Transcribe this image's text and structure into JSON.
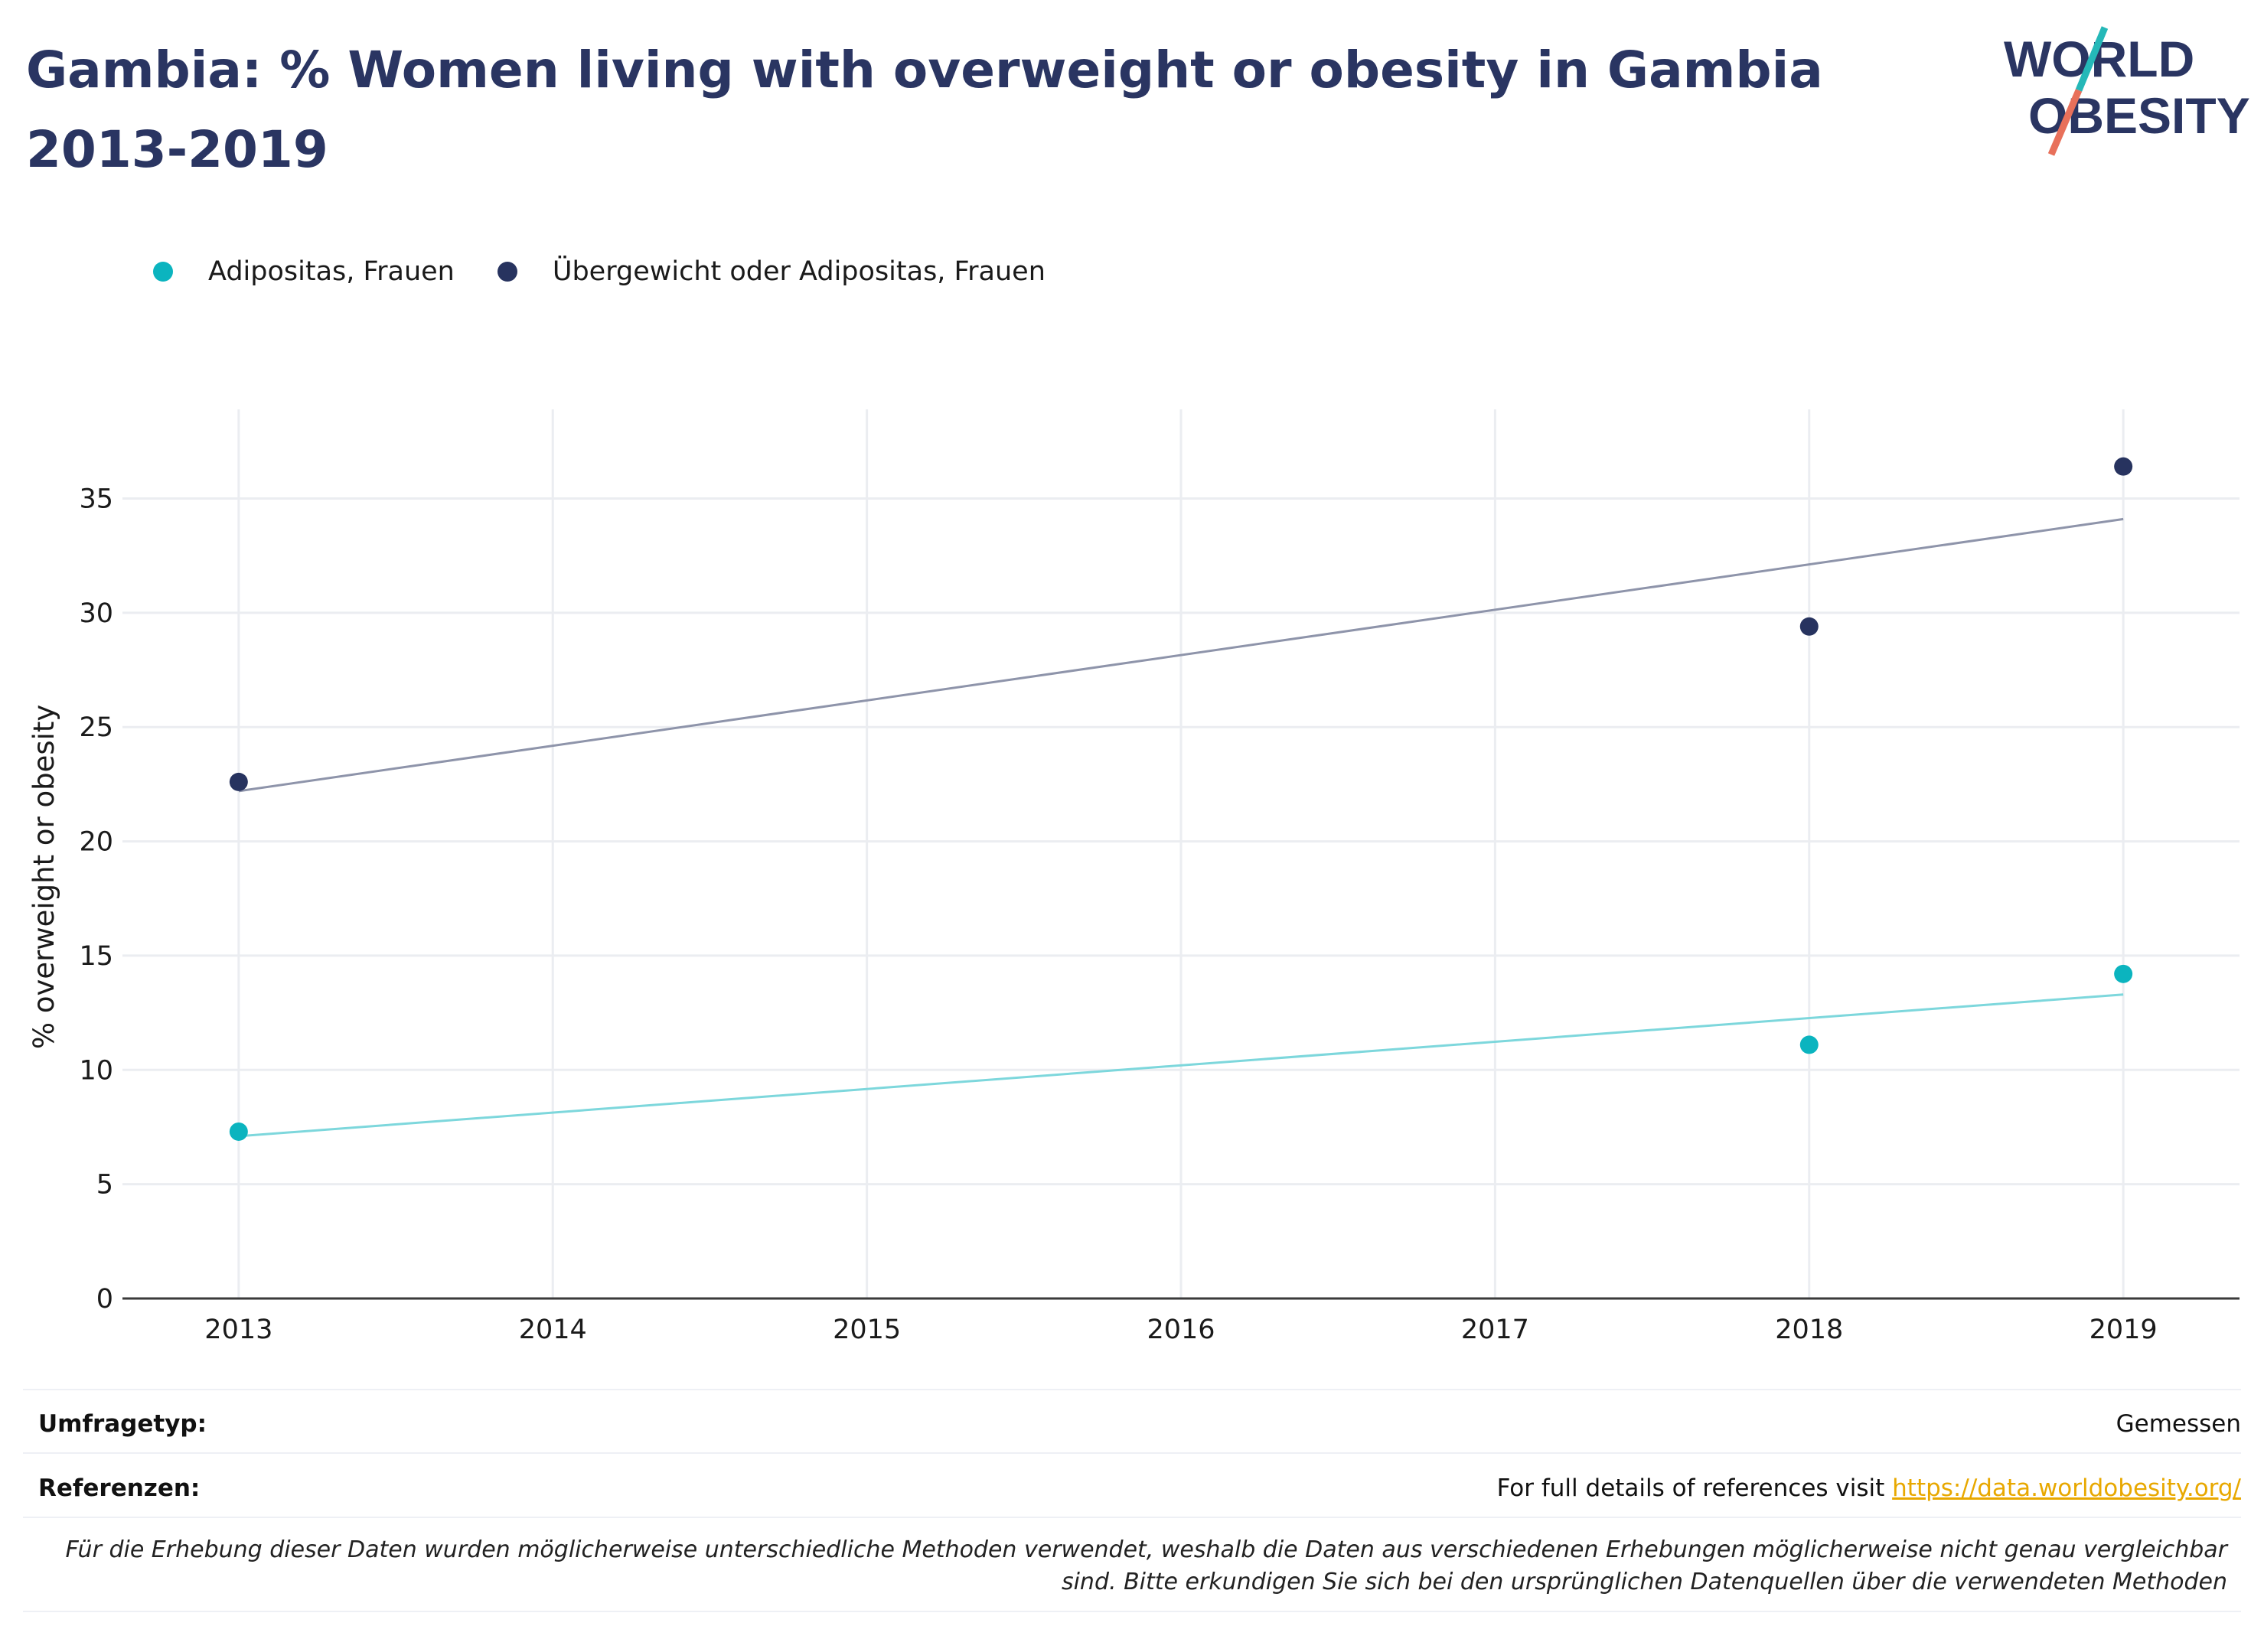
{
  "header": {
    "title": "Gambia: % Women living with overweight or obesity in Gambia 2013-2019",
    "logo_line1": "WORLD",
    "logo_line2": "OBESITY"
  },
  "colors": {
    "title": "#2a3562",
    "series_obesity": "#0bb4bf",
    "series_overweight": "#27335f",
    "trend_obesity": "#7dd7dc",
    "trend_overweight": "#8e94aa",
    "link": "#e8a800",
    "logo_slash_top": "#25b8b8",
    "logo_slash_bottom": "#e8705a"
  },
  "chart_data": {
    "type": "scatter",
    "title": "Gambia: % Women living with overweight or obesity in Gambia 2013-2019",
    "xlabel": "",
    "ylabel": "% overweight or obesity",
    "x_ticks": [
      2013,
      2014,
      2015,
      2016,
      2017,
      2018,
      2019
    ],
    "y_ticks": [
      0,
      5,
      10,
      15,
      20,
      25,
      30,
      35
    ],
    "xlim": [
      2012.63,
      2019.37
    ],
    "ylim": [
      0,
      38.9
    ],
    "grid": true,
    "legend_position": "top-left",
    "series": [
      {
        "name": "Adipositas, Frauen",
        "color": "#0bb4bf",
        "points": [
          {
            "x": 2013,
            "y": 7.3
          },
          {
            "x": 2018,
            "y": 11.1
          },
          {
            "x": 2019,
            "y": 14.2
          }
        ],
        "trendline": [
          {
            "x": 2013,
            "y": 7.1
          },
          {
            "x": 2019,
            "y": 13.3
          }
        ]
      },
      {
        "name": "Übergewicht oder Adipositas, Frauen",
        "color": "#27335f",
        "points": [
          {
            "x": 2013,
            "y": 22.6
          },
          {
            "x": 2018,
            "y": 29.4
          },
          {
            "x": 2019,
            "y": 36.4
          }
        ],
        "trendline": [
          {
            "x": 2013,
            "y": 22.2
          },
          {
            "x": 2019,
            "y": 34.1
          }
        ]
      }
    ]
  },
  "footer": {
    "survey_label": "Umfragetyp:",
    "survey_value": "Gemessen",
    "ref_label": "Referenzen:",
    "ref_text": "For full details of references visit ",
    "ref_link": "https://data.worldobesity.org/",
    "note": "Für die Erhebung dieser Daten wurden möglicherweise unterschiedliche Methoden verwendet, weshalb die Daten aus verschiedenen Erhebungen möglicherweise nicht genau vergleichbar sind. Bitte erkundigen Sie sich bei den ursprünglichen Datenquellen über die verwendeten Methoden"
  }
}
